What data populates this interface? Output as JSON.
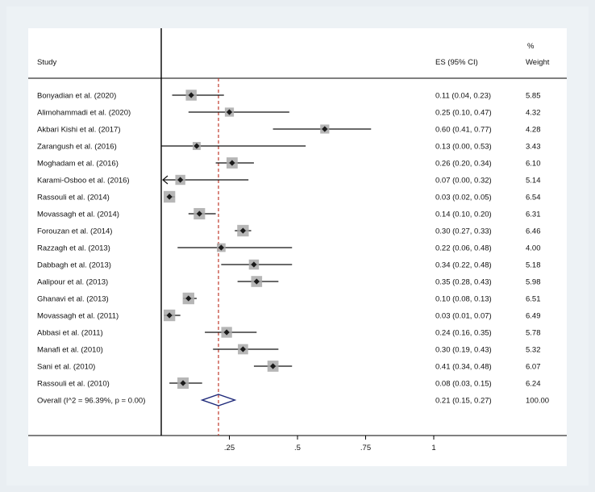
{
  "chart_data": {
    "type": "forest",
    "x_axis": {
      "ticks": [
        0.25,
        0.5,
        0.75,
        1
      ],
      "tick_labels": [
        ".25",
        ".5",
        ".75",
        "1"
      ],
      "range": [
        0,
        1
      ],
      "reference_line": 0.21
    },
    "headers": {
      "study": "Study",
      "es": "ES (95% CI)",
      "weight_symbol": "%",
      "weight": "Weight"
    },
    "studies": [
      {
        "name": "Bonyadian et al. (2020)",
        "es": 0.11,
        "lo": 0.04,
        "hi": 0.23,
        "ci_text": "0.11 (0.04, 0.23)",
        "weight": "5.85"
      },
      {
        "name": "Alimohammadi et al. (2020)",
        "es": 0.25,
        "lo": 0.1,
        "hi": 0.47,
        "ci_text": "0.25 (0.10, 0.47)",
        "weight": "4.32"
      },
      {
        "name": "Akbari Kishi et al. (2017)",
        "es": 0.6,
        "lo": 0.41,
        "hi": 0.77,
        "ci_text": "0.60 (0.41, 0.77)",
        "weight": "4.28"
      },
      {
        "name": "Zarangush et al. (2016)",
        "es": 0.13,
        "lo": 0.0,
        "hi": 0.53,
        "ci_text": "0.13 (0.00, 0.53)",
        "weight": "3.43"
      },
      {
        "name": "Moghadam et al. (2016)",
        "es": 0.26,
        "lo": 0.2,
        "hi": 0.34,
        "ci_text": "0.26 (0.20, 0.34)",
        "weight": "6.10"
      },
      {
        "name": "Karami-Osboo et al. (2016)",
        "es": 0.07,
        "lo": 0.0,
        "hi": 0.32,
        "ci_text": "0.07 (0.00, 0.32)",
        "weight": "5.14",
        "arrow_left": true
      },
      {
        "name": "Rassouli et al. (2014)",
        "es": 0.03,
        "lo": 0.02,
        "hi": 0.05,
        "ci_text": "0.03 (0.02, 0.05)",
        "weight": "6.54"
      },
      {
        "name": "Movassagh et al. (2014)",
        "es": 0.14,
        "lo": 0.1,
        "hi": 0.2,
        "ci_text": "0.14 (0.10, 0.20)",
        "weight": "6.31"
      },
      {
        "name": "Forouzan et al. (2014)",
        "es": 0.3,
        "lo": 0.27,
        "hi": 0.33,
        "ci_text": "0.30 (0.27, 0.33)",
        "weight": "6.46"
      },
      {
        "name": "Razzagh et al. (2013)",
        "es": 0.22,
        "lo": 0.06,
        "hi": 0.48,
        "ci_text": "0.22 (0.06, 0.48)",
        "weight": "4.00"
      },
      {
        "name": "Dabbagh et al. (2013)",
        "es": 0.34,
        "lo": 0.22,
        "hi": 0.48,
        "ci_text": "0.34 (0.22, 0.48)",
        "weight": "5.18"
      },
      {
        "name": "Aalipour et al. (2013)",
        "es": 0.35,
        "lo": 0.28,
        "hi": 0.43,
        "ci_text": "0.35 (0.28, 0.43)",
        "weight": "5.98"
      },
      {
        "name": "Ghanavi et al. (2013)",
        "es": 0.1,
        "lo": 0.08,
        "hi": 0.13,
        "ci_text": "0.10 (0.08, 0.13)",
        "weight": "6.51"
      },
      {
        "name": "Movassagh et al. (2011)",
        "es": 0.03,
        "lo": 0.01,
        "hi": 0.07,
        "ci_text": "0.03 (0.01, 0.07)",
        "weight": "6.49"
      },
      {
        "name": "Abbasi et al. (2011)",
        "es": 0.24,
        "lo": 0.16,
        "hi": 0.35,
        "ci_text": "0.24 (0.16, 0.35)",
        "weight": "5.78"
      },
      {
        "name": "Manafi et al. (2010)",
        "es": 0.3,
        "lo": 0.19,
        "hi": 0.43,
        "ci_text": "0.30 (0.19, 0.43)",
        "weight": "5.32"
      },
      {
        "name": "Sani et al. (2010)",
        "es": 0.41,
        "lo": 0.34,
        "hi": 0.48,
        "ci_text": "0.41 (0.34, 0.48)",
        "weight": "6.07"
      },
      {
        "name": "Rassouli et al. (2010)",
        "es": 0.08,
        "lo": 0.03,
        "hi": 0.15,
        "ci_text": "0.08 (0.03, 0.15)",
        "weight": "6.24"
      }
    ],
    "overall": {
      "label": "Overall  (I^2 = 96.39%, p = 0.00)",
      "es": 0.21,
      "lo": 0.15,
      "hi": 0.27,
      "ci_text": "0.21 (0.15, 0.27)",
      "weight": "100.00"
    },
    "colors": {
      "ref_line": "#c0392b",
      "diamond": "#1f2a7a",
      "box": "#a9a9a9",
      "point": "#1a1a1a",
      "line": "#111111"
    }
  }
}
